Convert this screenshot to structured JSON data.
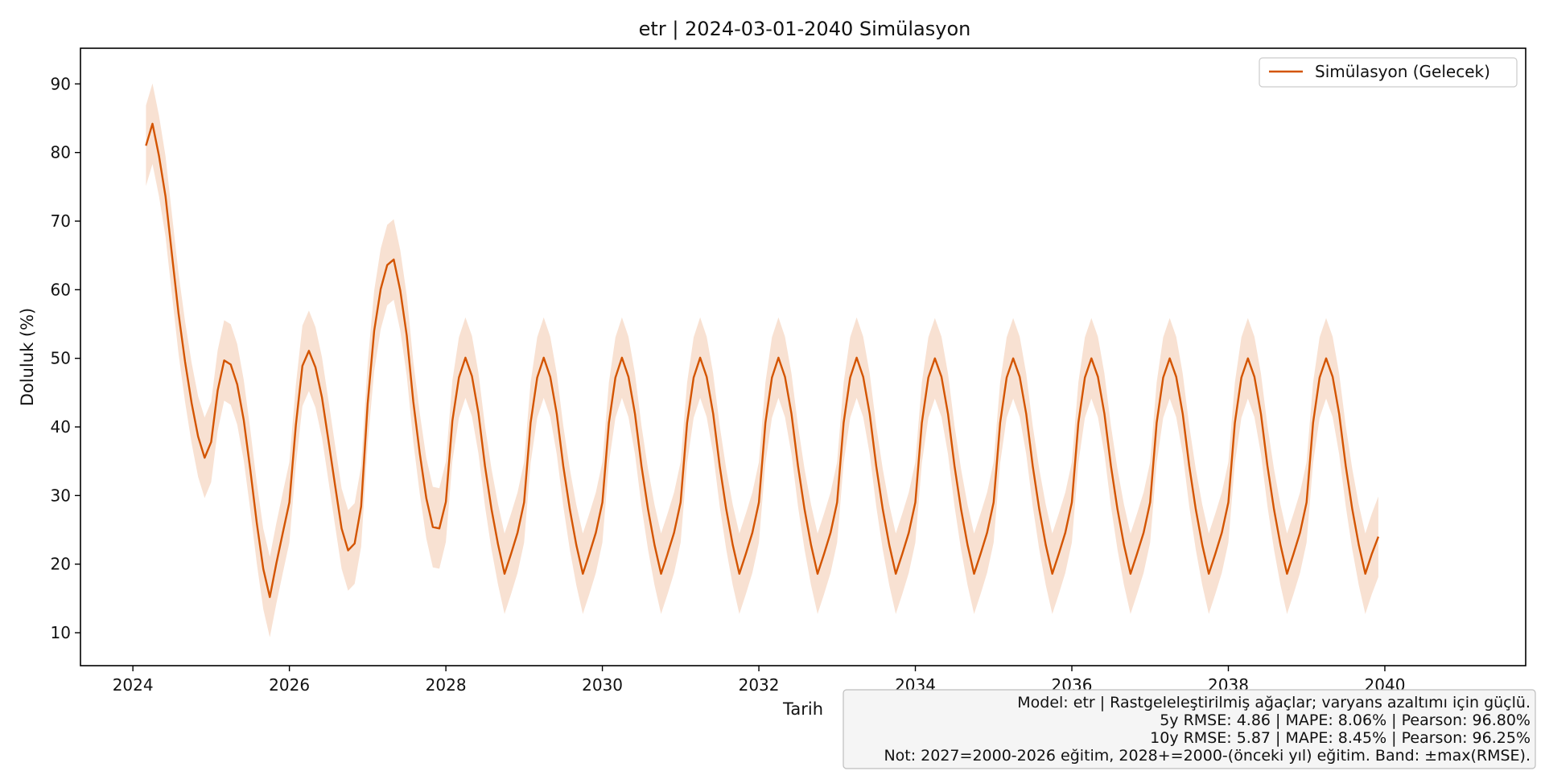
{
  "chart_data": {
    "type": "line",
    "title": "etr | 2024-03-01-2040 Simülasyon",
    "xlabel": "Tarih",
    "ylabel": "Doluluk (%)",
    "xlim": [
      2023.33,
      2041.8
    ],
    "ylim": [
      5.2,
      95.2
    ],
    "x_ticks": [
      2024,
      2026,
      2028,
      2030,
      2032,
      2034,
      2036,
      2038,
      2040
    ],
    "x_tick_labels": [
      "2024",
      "2026",
      "2028",
      "2030",
      "2032",
      "2034",
      "2036",
      "2038",
      "2040"
    ],
    "y_ticks": [
      10,
      20,
      30,
      40,
      50,
      60,
      70,
      80,
      90
    ],
    "y_tick_labels": [
      "10",
      "20",
      "30",
      "40",
      "50",
      "60",
      "70",
      "80",
      "90"
    ],
    "grid": false,
    "legend_position": "top-right",
    "band": "±max(RMSE) = 5.87",
    "colors": {
      "line": "#d35400",
      "band": "#f8e1d2"
    },
    "series": [
      {
        "name": "Simülasyon (Gelecek)",
        "start": "2024-03",
        "frequency": "monthly",
        "band_halfwidth": 5.87,
        "values": [
          81.0,
          84.2,
          79.5,
          73.6,
          65.0,
          56.5,
          49.5,
          43.5,
          38.6,
          35.5,
          37.8,
          45.3,
          49.7,
          49.1,
          46.2,
          41.0,
          33.8,
          26.0,
          19.3,
          15.2,
          20.1,
          24.6,
          29.0,
          40.3,
          48.9,
          51.1,
          48.7,
          44.3,
          38.0,
          31.5,
          25.2,
          22.0,
          23.0,
          28.4,
          43.4,
          54.0,
          60.1,
          63.6,
          64.4,
          59.9,
          53.3,
          43.7,
          36.1,
          29.6,
          25.4,
          25.2,
          29.1,
          40.9,
          47.2,
          50.1,
          47.4,
          42.0,
          34.3,
          28.0,
          22.9,
          18.6,
          21.5,
          24.6,
          29.0,
          40.6,
          47.2,
          50.1,
          47.3,
          41.9,
          34.3,
          28.0,
          22.8,
          18.6,
          21.5,
          24.6,
          29.0,
          40.6,
          47.2,
          50.1,
          47.3,
          41.9,
          34.3,
          28.0,
          22.8,
          18.6,
          21.5,
          24.6,
          29.0,
          40.6,
          47.2,
          50.1,
          47.3,
          41.9,
          34.3,
          28.0,
          22.8,
          18.6,
          21.5,
          24.6,
          29.0,
          40.6,
          47.2,
          50.1,
          47.3,
          41.9,
          34.3,
          28.0,
          22.8,
          18.6,
          21.5,
          24.6,
          29.0,
          40.6,
          47.2,
          50.1,
          47.3,
          41.9,
          34.3,
          28.0,
          22.8,
          18.6,
          21.5,
          24.6,
          29.0,
          40.6,
          47.2,
          50.0,
          47.3,
          41.9,
          34.3,
          28.0,
          22.8,
          18.6,
          21.5,
          24.6,
          29.0,
          40.6,
          47.2,
          50.0,
          47.3,
          41.9,
          34.3,
          28.0,
          22.8,
          18.6,
          21.5,
          24.6,
          29.0,
          40.6,
          47.2,
          50.0,
          47.3,
          41.9,
          34.3,
          28.0,
          22.8,
          18.6,
          21.5,
          24.6,
          29.0,
          40.6,
          47.2,
          50.0,
          47.3,
          41.9,
          34.3,
          28.0,
          22.8,
          18.6,
          21.5,
          24.6,
          29.0,
          40.6,
          47.2,
          50.0,
          47.3,
          41.9,
          34.3,
          28.0,
          22.8,
          18.6,
          21.5,
          24.6,
          29.0,
          40.6,
          47.2,
          50.0,
          47.3,
          41.9,
          34.3,
          28.0,
          22.8,
          18.6,
          21.5,
          24.0
        ]
      }
    ],
    "annotation": [
      "Model: etr | Rastgeleleştirilmiş ağaçlar; varyans azaltımı için güçlü.",
      "5y RMSE: 4.86 | MAPE: 8.06% | Pearson: 96.80%",
      "10y RMSE: 5.87 | MAPE: 8.45% | Pearson: 96.25%",
      "Not: 2027=2000-2026 eğitim, 2028+=2000-(önceki yıl) eğitim. Band: ±max(RMSE)."
    ]
  }
}
